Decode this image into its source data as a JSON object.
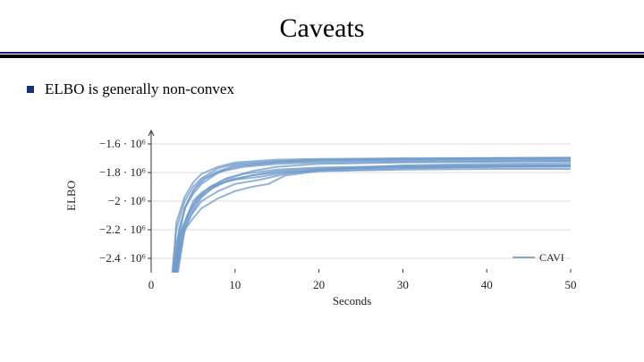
{
  "slide": {
    "title": "Caveats",
    "bullet": "ELBO is generally non-convex"
  },
  "colors": {
    "line": "#6f9bc9",
    "rule_thin": "#1a1a7a",
    "rule_thick": "#000000",
    "bullet": "#1a2f7a",
    "grid": "#dcdcdc"
  },
  "chart_data": {
    "type": "line",
    "title": "",
    "xlabel": "Seconds",
    "ylabel": "ELBO",
    "xlim": [
      0,
      50
    ],
    "ylim": [
      -2.5,
      -1.55
    ],
    "y_unit": "10^6",
    "x_ticks": [
      0,
      10,
      20,
      30,
      40,
      50
    ],
    "y_ticks": [
      -1.6,
      -1.8,
      -2.0,
      -2.2,
      -2.4
    ],
    "y_tick_labels": [
      "−1.6 · 10⁶",
      "−1.8 · 10⁶",
      "−2 · 10⁶",
      "−2.2 · 10⁶",
      "−2.4 · 10⁶"
    ],
    "grid": "horizontal",
    "legend": {
      "label": "CAVI",
      "position": "bottom-right"
    },
    "series": [
      {
        "x": [
          2.5,
          3,
          4,
          5,
          6,
          8,
          10,
          15,
          20,
          30,
          40,
          50
        ],
        "values": [
          -2.5,
          -2.2,
          -2.0,
          -1.9,
          -1.84,
          -1.77,
          -1.74,
          -1.72,
          -1.71,
          -1.705,
          -1.7,
          -1.7
        ]
      },
      {
        "x": [
          2.7,
          3,
          4,
          5,
          6,
          8,
          10,
          15,
          20,
          30,
          40,
          50
        ],
        "values": [
          -2.5,
          -2.3,
          -2.05,
          -1.95,
          -1.88,
          -1.8,
          -1.76,
          -1.73,
          -1.72,
          -1.715,
          -1.71,
          -1.71
        ]
      },
      {
        "x": [
          2.8,
          3.5,
          4.5,
          5.5,
          7,
          9,
          12,
          15,
          20,
          30,
          40,
          50
        ],
        "values": [
          -2.5,
          -2.22,
          -2.08,
          -1.98,
          -1.9,
          -1.84,
          -1.79,
          -1.76,
          -1.74,
          -1.73,
          -1.725,
          -1.72
        ]
      },
      {
        "x": [
          3,
          3.5,
          4.5,
          6,
          8,
          10,
          13,
          16,
          20,
          30,
          40,
          50
        ],
        "values": [
          -2.5,
          -2.3,
          -2.12,
          -2.0,
          -1.93,
          -1.88,
          -1.85,
          -1.81,
          -1.78,
          -1.75,
          -1.74,
          -1.735
        ]
      },
      {
        "x": [
          3,
          4,
          5,
          6,
          8,
          10,
          12,
          14,
          16,
          20,
          30,
          40,
          50
        ],
        "values": [
          -2.5,
          -2.2,
          -2.12,
          -2.05,
          -1.98,
          -1.93,
          -1.9,
          -1.88,
          -1.82,
          -1.79,
          -1.77,
          -1.76,
          -1.755
        ]
      },
      {
        "x": [
          2.6,
          3,
          4,
          5,
          6,
          8,
          10,
          15,
          20,
          30,
          40,
          50
        ],
        "values": [
          -2.5,
          -2.15,
          -1.97,
          -1.87,
          -1.81,
          -1.76,
          -1.73,
          -1.71,
          -1.705,
          -1.7,
          -1.698,
          -1.695
        ]
      },
      {
        "x": [
          2.9,
          3.5,
          4.5,
          5.5,
          7,
          9,
          12,
          15,
          20,
          30,
          40,
          50
        ],
        "values": [
          -2.5,
          -2.25,
          -2.1,
          -2.0,
          -1.92,
          -1.86,
          -1.82,
          -1.8,
          -1.78,
          -1.76,
          -1.755,
          -1.75
        ]
      },
      {
        "x": [
          2.7,
          3.2,
          4,
          5,
          6,
          8,
          10,
          15,
          20,
          30,
          40,
          50
        ],
        "values": [
          -2.5,
          -2.28,
          -2.05,
          -1.93,
          -1.85,
          -1.79,
          -1.75,
          -1.725,
          -1.715,
          -1.71,
          -1.705,
          -1.703
        ]
      },
      {
        "x": [
          3.1,
          3.8,
          5,
          6,
          8,
          10,
          13,
          16,
          20,
          30,
          40,
          50
        ],
        "values": [
          -2.5,
          -2.18,
          -2.0,
          -1.94,
          -1.88,
          -1.85,
          -1.83,
          -1.8,
          -1.79,
          -1.78,
          -1.775,
          -1.775
        ]
      },
      {
        "x": [
          2.8,
          3.3,
          4.2,
          5.2,
          6.5,
          8.5,
          11,
          15,
          20,
          30,
          40,
          50
        ],
        "values": [
          -2.5,
          -2.2,
          -2.02,
          -1.91,
          -1.84,
          -1.79,
          -1.76,
          -1.74,
          -1.73,
          -1.725,
          -1.72,
          -1.72
        ]
      },
      {
        "x": [
          3.2,
          4,
          5,
          6,
          7.5,
          9.5,
          12,
          15,
          20,
          30,
          40,
          50
        ],
        "values": [
          -2.5,
          -2.2,
          -2.07,
          -1.97,
          -1.9,
          -1.85,
          -1.82,
          -1.79,
          -1.77,
          -1.765,
          -1.762,
          -1.76
        ]
      },
      {
        "x": [
          2.9,
          3.4,
          4.3,
          5.4,
          6.8,
          8.8,
          11,
          15,
          20,
          30,
          40,
          50
        ],
        "values": [
          -2.5,
          -2.26,
          -2.1,
          -1.99,
          -1.91,
          -1.85,
          -1.81,
          -1.78,
          -1.765,
          -1.755,
          -1.75,
          -1.748
        ]
      }
    ]
  }
}
